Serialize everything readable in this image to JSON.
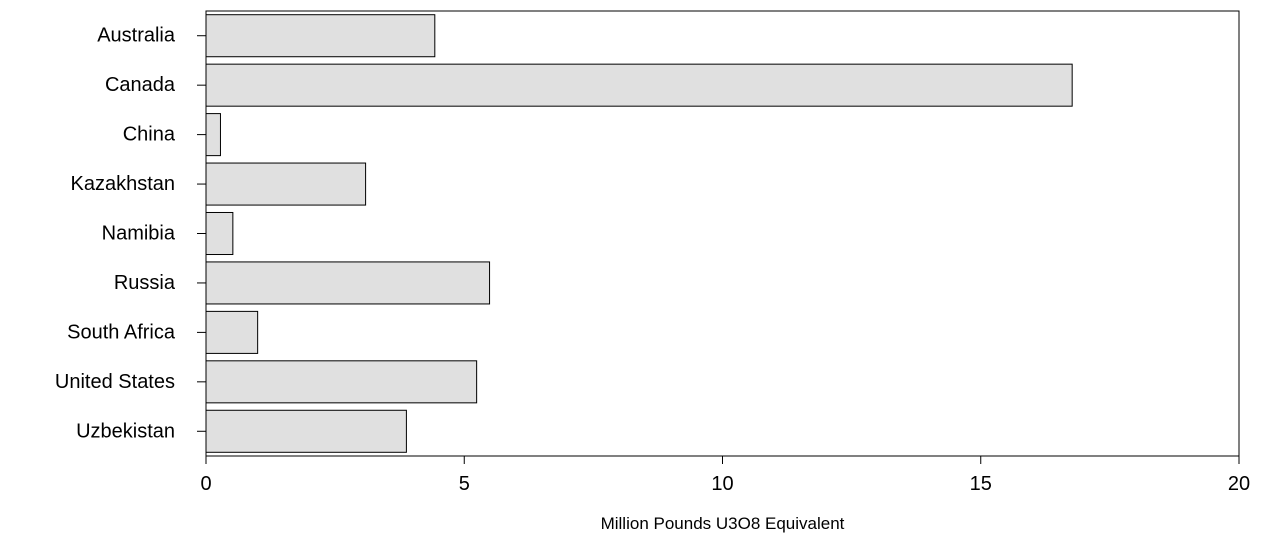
{
  "chart_data": {
    "type": "bar",
    "orientation": "horizontal",
    "categories": [
      "Australia",
      "Canada",
      "China",
      "Kazakhstan",
      "Namibia",
      "Russia",
      "South Africa",
      "United States",
      "Uzbekistan"
    ],
    "values": [
      4.43,
      16.77,
      0.28,
      3.09,
      0.52,
      5.49,
      1.0,
      5.24,
      3.88
    ],
    "xlabel": "Million Pounds U3O8 Equivalent",
    "ylabel": "",
    "xlim": [
      0,
      20
    ],
    "x_ticks": [
      "0",
      "5",
      "10",
      "15",
      "20"
    ],
    "grid": false,
    "bar_fill": "#e0e0e0",
    "bar_stroke": "#000000"
  }
}
